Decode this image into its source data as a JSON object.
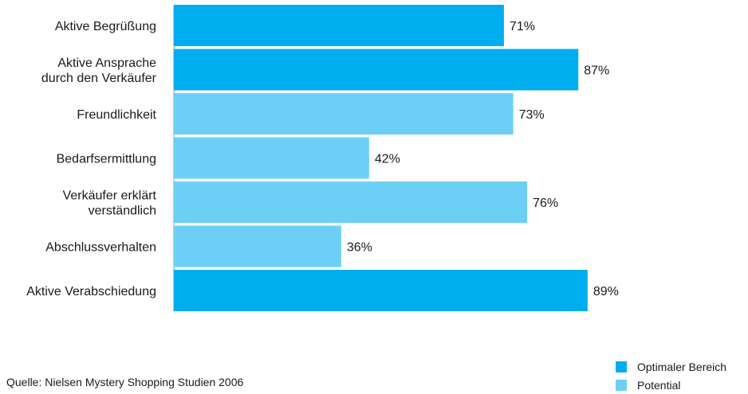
{
  "chart_data": {
    "type": "bar",
    "orientation": "horizontal",
    "categories": [
      [
        "Aktive Begrüßung"
      ],
      [
        "Aktive Ansprache",
        "durch den Verkäufer"
      ],
      [
        "Freundlichkeit"
      ],
      [
        "Bedarfsermittlung"
      ],
      [
        "Verkäufer erklärt",
        "verständlich"
      ],
      [
        "Abschlussverhalten"
      ],
      [
        "Aktive Verabschiedung"
      ]
    ],
    "values": [
      71,
      87,
      73,
      42,
      76,
      36,
      89
    ],
    "value_labels": [
      "71%",
      "87%",
      "73%",
      "42%",
      "76%",
      "36%",
      "89%"
    ],
    "bar_group": [
      "optimal",
      "optimal",
      "potential",
      "potential",
      "potential",
      "potential",
      "optimal"
    ],
    "xlim": [
      0,
      100
    ],
    "unit": "%",
    "grid": false,
    "legend": {
      "position": "bottom-right",
      "entries": [
        {
          "key": "optimal",
          "label": "Optimaler Bereich",
          "color": "#00aeef"
        },
        {
          "key": "potential",
          "label": "Potential",
          "color": "#6ccff6"
        }
      ]
    }
  },
  "source": "Quelle: Nielsen Mystery Shopping Studien 2006"
}
